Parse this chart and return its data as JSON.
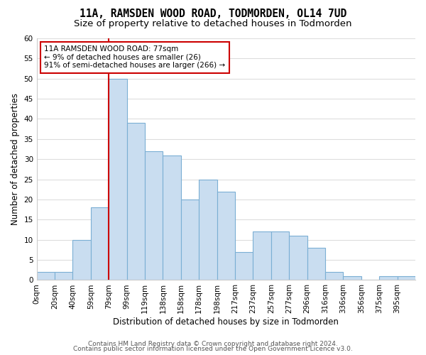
{
  "title": "11A, RAMSDEN WOOD ROAD, TODMORDEN, OL14 7UD",
  "subtitle": "Size of property relative to detached houses in Todmorden",
  "xlabel": "Distribution of detached houses by size in Todmorden",
  "ylabel": "Number of detached properties",
  "bin_labels": [
    "0sqm",
    "20sqm",
    "40sqm",
    "59sqm",
    "79sqm",
    "99sqm",
    "119sqm",
    "138sqm",
    "158sqm",
    "178sqm",
    "198sqm",
    "217sqm",
    "237sqm",
    "257sqm",
    "277sqm",
    "296sqm",
    "316sqm",
    "336sqm",
    "356sqm",
    "375sqm",
    "395sqm"
  ],
  "bar_values": [
    2,
    2,
    10,
    18,
    50,
    39,
    32,
    31,
    20,
    25,
    22,
    7,
    12,
    12,
    11,
    8,
    2,
    1,
    0,
    1,
    1
  ],
  "bar_color": "#c9ddf0",
  "bar_edge_color": "#7bafd4",
  "highlight_bar_index": 4,
  "highlight_line_color": "#cc0000",
  "annotation_line1": "11A RAMSDEN WOOD ROAD: 77sqm",
  "annotation_line2": "← 9% of detached houses are smaller (26)",
  "annotation_line3": "91% of semi-detached houses are larger (266) →",
  "annotation_box_color": "#ffffff",
  "annotation_box_edge": "#cc0000",
  "ylim": [
    0,
    60
  ],
  "yticks": [
    0,
    5,
    10,
    15,
    20,
    25,
    30,
    35,
    40,
    45,
    50,
    55,
    60
  ],
  "footer1": "Contains HM Land Registry data © Crown copyright and database right 2024.",
  "footer2": "Contains public sector information licensed under the Open Government Licence v3.0.",
  "bg_color": "#ffffff",
  "plot_bg_color": "#ffffff",
  "grid_color": "#dddddd",
  "title_fontsize": 10.5,
  "subtitle_fontsize": 9.5,
  "axis_label_fontsize": 8.5,
  "tick_fontsize": 7.5,
  "footer_fontsize": 6.5
}
